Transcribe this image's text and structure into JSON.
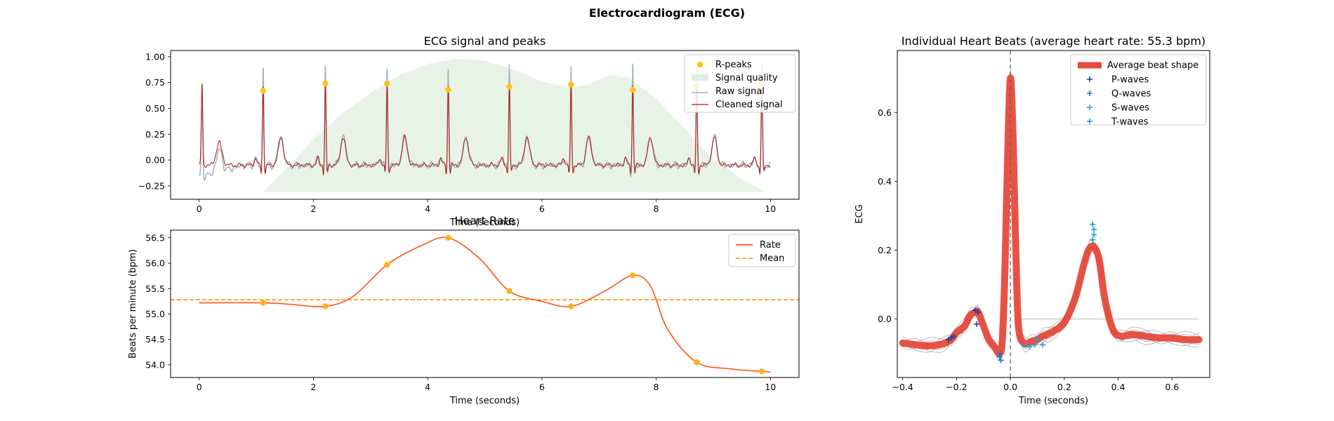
{
  "figure": {
    "title": "Electrocardiogram (ECG)"
  },
  "chart_data": [
    {
      "id": "ecg",
      "type": "line",
      "title": "ECG signal and peaks",
      "xlabel": "Time (seconds)",
      "ylabel": "",
      "xlim": [
        -0.5,
        10.5
      ],
      "ylim": [
        -0.38,
        1.06
      ],
      "xticks": [
        0,
        2,
        4,
        6,
        8,
        10
      ],
      "yticks": [
        -0.25,
        0,
        0.25,
        0.5,
        0.75,
        1.0
      ],
      "xtick_labels": [
        "0",
        "2",
        "4",
        "6",
        "8",
        "10"
      ],
      "ytick_labels": [
        "−0.25",
        "0.00",
        "0.25",
        "0.50",
        "0.75",
        "1.00"
      ],
      "legend_position": "top-right",
      "legend": [
        "R-peaks",
        "Signal quality",
        "Raw signal",
        "Cleaned signal"
      ],
      "r_peaks": {
        "x": [
          1.12,
          2.21,
          3.29,
          4.36,
          5.43,
          6.51,
          7.59,
          8.71,
          9.85
        ],
        "y": [
          0.67,
          0.74,
          0.74,
          0.68,
          0.71,
          0.73,
          0.68,
          0.71,
          0.74
        ]
      },
      "signal_quality": {
        "x": [
          1.12,
          1.5,
          2.0,
          2.5,
          3.0,
          3.5,
          4.0,
          4.5,
          5.0,
          5.5,
          6.0,
          6.5,
          6.8,
          7.2,
          7.5,
          8.0,
          8.5,
          9.0,
          9.5,
          9.9
        ],
        "y": [
          -0.31,
          -0.1,
          0.2,
          0.45,
          0.65,
          0.82,
          0.93,
          0.98,
          0.96,
          0.88,
          0.76,
          0.7,
          0.73,
          0.82,
          0.8,
          0.6,
          0.3,
          0.0,
          -0.18,
          -0.31
        ],
        "baseline": -0.31
      },
      "series": [
        {
          "name": "Raw signal",
          "role": "raw",
          "color": "#a6b5bd"
        },
        {
          "name": "Cleaned signal",
          "role": "clean",
          "color": "#b22222"
        }
      ]
    },
    {
      "id": "rate",
      "type": "line",
      "title": "Heart Rate",
      "xlabel": "Time (seconds)",
      "ylabel": "Beats per minute (bpm)",
      "xlim": [
        -0.5,
        10.5
      ],
      "ylim": [
        53.75,
        56.65
      ],
      "xticks": [
        0,
        2,
        4,
        6,
        8,
        10
      ],
      "yticks": [
        54.0,
        54.5,
        55.0,
        55.5,
        56.0,
        56.5
      ],
      "xtick_labels": [
        "0",
        "2",
        "4",
        "6",
        "8",
        "10"
      ],
      "ytick_labels": [
        "54.0",
        "54.5",
        "55.0",
        "55.5",
        "56.0",
        "56.5"
      ],
      "legend_position": "top-right",
      "legend": [
        "Rate",
        "Mean"
      ],
      "points": {
        "x": [
          1.12,
          2.21,
          3.29,
          4.36,
          5.43,
          6.51,
          7.59,
          8.71,
          9.85
        ],
        "y": [
          55.22,
          55.15,
          55.97,
          56.5,
          55.45,
          55.15,
          55.76,
          54.05,
          53.87
        ]
      },
      "series": [
        {
          "name": "Rate",
          "x": [
            0,
            1.12,
            1.6,
            2.21,
            2.7,
            3.29,
            3.9,
            4.36,
            4.9,
            5.43,
            6.0,
            6.51,
            7.1,
            7.59,
            7.9,
            8.2,
            8.71,
            9.3,
            9.85,
            10.0
          ],
          "y": [
            55.22,
            55.22,
            55.19,
            55.15,
            55.35,
            55.97,
            56.35,
            56.5,
            56.1,
            55.45,
            55.25,
            55.15,
            55.45,
            55.76,
            55.55,
            54.7,
            54.05,
            53.92,
            53.87,
            53.86
          ],
          "color": "#ff5a1f"
        },
        {
          "name": "Mean",
          "value": 55.28,
          "color": "#ff9900"
        }
      ]
    },
    {
      "id": "beats",
      "type": "line",
      "title": "Individual Heart Beats (average heart rate: 55.3 bpm)",
      "xlabel": "Time (seconds)",
      "ylabel": "ECG",
      "xlim": [
        -0.42,
        0.74
      ],
      "ylim": [
        -0.17,
        0.78
      ],
      "xticks": [
        -0.4,
        -0.2,
        0.0,
        0.2,
        0.4,
        0.6
      ],
      "yticks": [
        0.0,
        0.2,
        0.4,
        0.6
      ],
      "xtick_labels": [
        "−0.4",
        "−0.2",
        "0.0",
        "0.2",
        "0.4",
        "0.6"
      ],
      "ytick_labels": [
        "0.0",
        "0.2",
        "0.4",
        "0.6"
      ],
      "legend_position": "top-right",
      "legend": [
        "Average beat shape",
        "P-waves",
        "Q-waves",
        "S-waves",
        "T-waves"
      ],
      "average_beat": {
        "x": [
          -0.4,
          -0.35,
          -0.3,
          -0.25,
          -0.22,
          -0.2,
          -0.17,
          -0.15,
          -0.13,
          -0.12,
          -0.1,
          -0.08,
          -0.06,
          -0.04,
          -0.03,
          -0.02,
          -0.01,
          0.0,
          0.01,
          0.02,
          0.03,
          0.05,
          0.08,
          0.1,
          0.12,
          0.15,
          0.2,
          0.24,
          0.27,
          0.29,
          0.31,
          0.33,
          0.35,
          0.38,
          0.41,
          0.45,
          0.5,
          0.55,
          0.6,
          0.65,
          0.7
        ],
        "y": [
          -0.07,
          -0.075,
          -0.078,
          -0.072,
          -0.06,
          -0.04,
          -0.02,
          0.01,
          0.02,
          0.02,
          -0.02,
          -0.06,
          -0.08,
          -0.1,
          -0.06,
          0.15,
          0.48,
          0.7,
          0.52,
          0.2,
          -0.02,
          -0.07,
          -0.065,
          -0.06,
          -0.05,
          -0.04,
          -0.01,
          0.06,
          0.15,
          0.2,
          0.21,
          0.17,
          0.06,
          -0.03,
          -0.05,
          -0.045,
          -0.05,
          -0.055,
          -0.055,
          -0.06,
          -0.06
        ],
        "color": "#e64a3c"
      },
      "individual_beat_count": 9,
      "markers": {
        "P-waves": {
          "x": [
            -0.23,
            -0.22,
            -0.21,
            -0.13,
            -0.12,
            -0.125
          ],
          "y": [
            -0.06,
            -0.055,
            -0.05,
            0.025,
            0.02,
            -0.015
          ],
          "color": "#1f3fa0"
        },
        "Q-waves": {
          "x": [
            -0.04,
            -0.035,
            -0.038
          ],
          "y": [
            -0.11,
            -0.12,
            -0.1
          ],
          "color": "#1f77b4"
        },
        "S-waves": {
          "x": [
            0.05,
            0.07,
            0.09,
            0.1,
            0.12
          ],
          "y": [
            -0.075,
            -0.08,
            -0.075,
            -0.06,
            -0.075
          ],
          "color": "#2a9ad8"
        },
        "T-waves": {
          "x": [
            0.305,
            0.31,
            0.31,
            0.305
          ],
          "y": [
            0.275,
            0.26,
            0.245,
            0.23
          ],
          "color": "#17a6c4"
        }
      }
    }
  ]
}
